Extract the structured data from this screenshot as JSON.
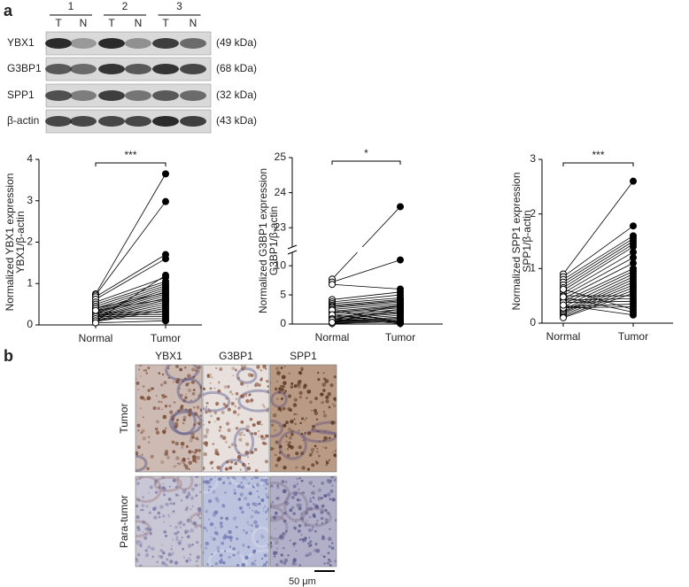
{
  "panel_a": {
    "label": "a",
    "blot": {
      "groups": [
        "1",
        "2",
        "3"
      ],
      "lanes": [
        "T",
        "N",
        "T",
        "N",
        "T",
        "N"
      ],
      "rows": [
        {
          "protein": "YBX1",
          "size": "(49 kDa)"
        },
        {
          "protein": "G3BP1",
          "size": "(68 kDa)"
        },
        {
          "protein": "SPP1",
          "size": "(32 kDa)"
        },
        {
          "protein": "β-actin",
          "size": "(43 kDa)"
        }
      ]
    }
  },
  "chart_data": [
    {
      "type": "paired_dot",
      "ylabel": [
        "Normalized YBX1 expression",
        "YBX1/β-actin"
      ],
      "categories": [
        "Normal",
        "Tumor"
      ],
      "significance": "***",
      "ylim": [
        0,
        4
      ],
      "yticks": [
        0,
        1,
        2,
        3,
        4
      ],
      "normal": [
        0.75,
        0.72,
        0.68,
        0.62,
        0.55,
        0.5,
        0.45,
        0.4,
        0.35,
        0.32,
        0.3,
        0.28,
        0.25,
        0.22,
        0.2,
        0.18,
        0.15,
        0.12,
        0.1,
        0.08,
        0.3,
        0.25,
        0.2,
        0.15,
        0.1,
        0.05,
        0.4,
        0.35
      ],
      "tumor": [
        3.65,
        2.98,
        1.7,
        1.6,
        1.15,
        1.05,
        1.0,
        0.95,
        0.9,
        0.85,
        0.8,
        0.75,
        0.7,
        0.65,
        0.6,
        0.55,
        0.5,
        0.45,
        0.4,
        0.35,
        0.3,
        0.25,
        0.2,
        0.15,
        1.2,
        0.1,
        0.78,
        0.62
      ]
    },
    {
      "type": "paired_dot",
      "ylabel": [
        "Normalized G3BP1 expression",
        "G3BP1/β-actin"
      ],
      "categories": [
        "Normal",
        "Tumor"
      ],
      "significance": "*",
      "ylim": [
        0,
        25
      ],
      "axis_break": [
        12,
        22.5
      ],
      "yticks": [
        0,
        5,
        10,
        23,
        24,
        25
      ],
      "normal": [
        7.7,
        7.2,
        6.8,
        4.2,
        3.8,
        3.5,
        3.2,
        3.0,
        2.8,
        2.5,
        2.2,
        2.0,
        1.8,
        1.5,
        1.2,
        1.0,
        0.8,
        0.6,
        0.5,
        0.4,
        0.3,
        0.2,
        0.1,
        2.4,
        1.6,
        0.9,
        0.7,
        0.3
      ],
      "tumor": [
        23.6,
        11.0,
        6.0,
        5.5,
        5.0,
        4.5,
        4.2,
        4.0,
        3.8,
        3.5,
        3.2,
        3.0,
        2.8,
        2.5,
        2.2,
        2.0,
        1.8,
        1.5,
        1.2,
        1.0,
        0.8,
        0.6,
        0.4,
        0.3,
        0.2,
        0.1,
        3.3,
        2.6
      ]
    },
    {
      "type": "paired_dot",
      "ylabel": [
        "Normalized SPP1 expression",
        "SPP1/β-actin"
      ],
      "categories": [
        "Normal",
        "Tumor"
      ],
      "significance": "***",
      "ylim": [
        0,
        3
      ],
      "yticks": [
        0,
        1,
        2,
        3
      ],
      "normal": [
        0.9,
        0.85,
        0.8,
        0.75,
        0.7,
        0.65,
        0.6,
        0.55,
        0.5,
        0.45,
        0.4,
        0.35,
        0.3,
        0.25,
        0.22,
        0.2,
        0.18,
        0.15,
        0.12,
        0.1,
        0.5,
        0.42,
        0.38,
        0.3,
        0.28,
        0.62,
        0.48,
        0.33
      ],
      "tumor": [
        2.6,
        1.78,
        1.6,
        1.55,
        1.5,
        1.45,
        1.4,
        1.3,
        1.2,
        1.1,
        1.0,
        0.95,
        0.9,
        0.85,
        0.8,
        0.75,
        0.7,
        0.65,
        0.6,
        0.55,
        0.5,
        0.45,
        0.4,
        0.35,
        0.3,
        0.25,
        0.2,
        0.15
      ]
    }
  ],
  "panel_b": {
    "label": "b",
    "columns": [
      "YBX1",
      "G3BP1",
      "SPP1"
    ],
    "rows": [
      "Tumor",
      "Para-tumor"
    ],
    "scale_bar": "50 μm"
  }
}
